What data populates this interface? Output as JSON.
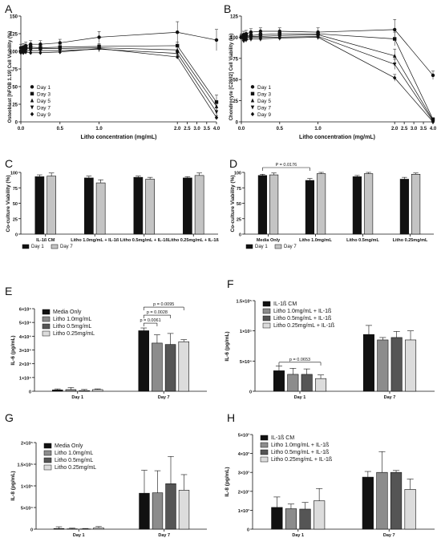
{
  "figure": {
    "colors": {
      "black": "#111111",
      "dark": "#555555",
      "mid": "#8c8c8c",
      "light": "#c4c4c4",
      "lighter": "#dcdcdc"
    }
  },
  "chart_data": [
    {
      "panel": "A",
      "type": "line",
      "xlabel": "Litho concentration (mg/mL)",
      "ylabel": "Osteoblast [hFOB 1.19] Cell Viability (%)",
      "ylim": [
        0,
        150
      ],
      "yticks": [
        0,
        25,
        50,
        75,
        100,
        125,
        150
      ],
      "xticks": [
        "0.0",
        "0.5",
        "1.0",
        "2.0",
        "2.5",
        "3.0",
        "3.5",
        "4.0"
      ],
      "legend": "left",
      "x": [
        0,
        0.03125,
        0.0625,
        0.125,
        0.25,
        0.5,
        1.0,
        2.0,
        4.0
      ],
      "series": [
        {
          "name": "Day 1",
          "marker": "circle",
          "values": [
            105,
            106,
            108,
            110,
            110,
            112,
            120,
            127,
            116
          ],
          "err": [
            5,
            5,
            5,
            5,
            5,
            5,
            8,
            15,
            15
          ]
        },
        {
          "name": "Day 3",
          "marker": "square",
          "values": [
            100,
            102,
            105,
            106,
            105,
            106,
            107,
            108,
            28
          ],
          "err": [
            4,
            4,
            4,
            4,
            4,
            4,
            4,
            5,
            10
          ]
        },
        {
          "name": "Day 5",
          "marker": "triangle-up",
          "values": [
            100,
            102,
            104,
            104,
            104,
            104,
            105,
            102,
            22
          ],
          "err": [
            4,
            4,
            4,
            4,
            4,
            4,
            4,
            4,
            8
          ]
        },
        {
          "name": "Day 7",
          "marker": "triangle-down",
          "values": [
            100,
            100,
            101,
            101,
            101,
            101,
            103,
            97,
            14
          ],
          "err": [
            4,
            4,
            4,
            4,
            4,
            4,
            4,
            4,
            6
          ]
        },
        {
          "name": "Day 9",
          "marker": "diamond",
          "values": [
            98,
            98,
            99,
            98,
            98,
            99,
            104,
            92,
            6
          ],
          "err": [
            3,
            3,
            3,
            3,
            3,
            3,
            3,
            3,
            3
          ]
        }
      ]
    },
    {
      "panel": "B",
      "type": "line",
      "xlabel": "Litho concentration (mg/mL)",
      "ylabel": "Chondrocyte [C28/I2] Cell Viability (%)",
      "ylim": [
        0,
        125
      ],
      "yticks": [
        0,
        25,
        50,
        75,
        100,
        125
      ],
      "xticks": [
        "0.0",
        "0.5",
        "1.0",
        "2.0",
        "2.5",
        "3.0",
        "3.5",
        "4.0"
      ],
      "legend": "left",
      "x": [
        0,
        0.03125,
        0.0625,
        0.125,
        0.25,
        0.5,
        1.0,
        2.0,
        4.0
      ],
      "series": [
        {
          "name": "Day 1",
          "marker": "circle",
          "values": [
            100,
            103,
            104,
            106,
            107,
            107,
            106,
            109,
            55
          ],
          "err": [
            4,
            4,
            4,
            4,
            4,
            4,
            5,
            12,
            5
          ]
        },
        {
          "name": "Day 3",
          "marker": "square",
          "values": [
            100,
            100,
            102,
            102,
            103,
            104,
            104,
            98,
            3
          ],
          "err": [
            3,
            3,
            3,
            3,
            3,
            3,
            3,
            8,
            2
          ]
        },
        {
          "name": "Day 5",
          "marker": "triangle-up",
          "values": [
            100,
            99,
            100,
            101,
            101,
            102,
            103,
            78,
            2
          ],
          "err": [
            3,
            3,
            3,
            3,
            3,
            3,
            3,
            8,
            2
          ]
        },
        {
          "name": "Day 7",
          "marker": "triangle-down",
          "values": [
            100,
            98,
            99,
            100,
            100,
            100,
            101,
            68,
            1
          ],
          "err": [
            3,
            3,
            3,
            3,
            3,
            3,
            3,
            6,
            1
          ]
        },
        {
          "name": "Day 9",
          "marker": "diamond",
          "values": [
            100,
            96,
            97,
            98,
            98,
            99,
            100,
            52,
            0
          ],
          "err": [
            3,
            3,
            3,
            3,
            3,
            3,
            3,
            4,
            1
          ]
        }
      ]
    },
    {
      "panel": "C",
      "type": "bar",
      "ylabel": "Co-culture Viability (%)",
      "ylim": [
        0,
        100
      ],
      "yticks": [
        0,
        25,
        50,
        75,
        100
      ],
      "categories": [
        "IL-1ß CM",
        "Litho 1.0mg/mL + IL-1ß",
        "Litho 0.5mg/mL + IL-1ß",
        "Litho 0.25mg/mL + IL-1ß"
      ],
      "legend": "bottom-left",
      "series": [
        {
          "name": "Day 1",
          "color": "black",
          "values": [
            93,
            91,
            92,
            91
          ],
          "err": [
            3,
            3,
            2,
            2
          ]
        },
        {
          "name": "Day 7",
          "color": "light",
          "values": [
            94,
            83,
            89,
            95
          ],
          "err": [
            5,
            5,
            3,
            4
          ]
        }
      ]
    },
    {
      "panel": "D",
      "type": "bar",
      "ylabel": "Co-culture Viability (%)",
      "ylim": [
        0,
        100
      ],
      "yticks": [
        0,
        25,
        50,
        75,
        100
      ],
      "categories": [
        "Media Only",
        "Litho 1.0mg/mL",
        "Litho 0.5mg/mL",
        "Litho 0.25mg/mL"
      ],
      "legend": "bottom-left",
      "series": [
        {
          "name": "Day 1",
          "color": "black",
          "values": [
            95,
            87,
            93,
            89
          ],
          "err": [
            2,
            3,
            2,
            3
          ]
        },
        {
          "name": "Day 7",
          "color": "light",
          "values": [
            96,
            98,
            98,
            97
          ],
          "err": [
            3,
            2,
            2,
            2
          ]
        }
      ],
      "annotations": [
        {
          "text": "P = 0.0176",
          "from": [
            0,
            0
          ],
          "to": [
            1,
            0
          ]
        }
      ]
    },
    {
      "panel": "E",
      "type": "bar",
      "ylabel": "IL-6 (pg/mL)",
      "ylim": [
        0,
        60000
      ],
      "yticks": [
        0,
        10000,
        20000,
        30000,
        40000,
        50000,
        60000
      ],
      "ytick_labels": [
        "0",
        "1×10⁴",
        "2×10⁴",
        "3×10⁴",
        "4×10⁴",
        "5×10⁴",
        "6×10⁴"
      ],
      "categories": [
        "Day 1",
        "Day 7"
      ],
      "legend": "top-left",
      "series": [
        {
          "name": "Media Only",
          "color": "black",
          "values": [
            1000,
            44000
          ],
          "err": [
            700,
            2000
          ]
        },
        {
          "name": "Litho 1.0mg/mL",
          "color": "mid",
          "values": [
            1200,
            35000
          ],
          "err": [
            1500,
            6000
          ]
        },
        {
          "name": "Litho 0.5mg/mL",
          "color": "dark",
          "values": [
            500,
            34000
          ],
          "err": [
            800,
            8000
          ]
        },
        {
          "name": "Litho 0.25mg/mL",
          "color": "lighter",
          "values": [
            1200,
            36000
          ],
          "err": [
            500,
            1500
          ]
        }
      ],
      "annotations": [
        {
          "text": "p = 0.0061",
          "from": [
            1,
            0
          ],
          "to": [
            1,
            1
          ]
        },
        {
          "text": "p = 0.0028",
          "from": [
            1,
            0
          ],
          "to": [
            1,
            2
          ]
        },
        {
          "text": "p = 0.0095",
          "from": [
            1,
            0
          ],
          "to": [
            1,
            3
          ]
        }
      ]
    },
    {
      "panel": "F",
      "type": "bar",
      "ylabel": "IL-6 (pg/mL)",
      "ylim": [
        0,
        150000
      ],
      "yticks": [
        0,
        50000,
        100000,
        150000
      ],
      "ytick_labels": [
        "0",
        "5×10⁴",
        "1×10⁵",
        "1.5×10⁵"
      ],
      "categories": [
        "Day 1",
        "Day 7"
      ],
      "legend": "top-left",
      "series": [
        {
          "name": "IL-1ß CM",
          "color": "black",
          "values": [
            34000,
            94000
          ],
          "err": [
            8000,
            15000
          ]
        },
        {
          "name": "Litho 1.0mg/mL + IL-1ß",
          "color": "mid",
          "values": [
            28000,
            85000
          ],
          "err": [
            10000,
            4000
          ]
        },
        {
          "name": "Litho 0.5mg/mL + IL-1ß",
          "color": "dark",
          "values": [
            28000,
            89000
          ],
          "err": [
            9000,
            10000
          ]
        },
        {
          "name": "Litho 0.25mg/mL + IL-1ß",
          "color": "lighter",
          "values": [
            21000,
            85000
          ],
          "err": [
            6000,
            15000
          ]
        }
      ],
      "annotations": [
        {
          "text": "p = 0.0653",
          "from": [
            0,
            0
          ],
          "to": [
            0,
            3
          ]
        }
      ]
    },
    {
      "panel": "G",
      "type": "bar",
      "ylabel": "IL-8 (pg/mL)",
      "ylim": [
        0,
        200000
      ],
      "yticks": [
        0,
        50000,
        100000,
        150000,
        200000
      ],
      "ytick_labels": [
        "0",
        "5×10⁴",
        "1×10⁵",
        "1.5×10⁵",
        "2×10⁵"
      ],
      "categories": [
        "Day 1",
        "Day 7"
      ],
      "legend": "top-left",
      "series": [
        {
          "name": "Media Only",
          "color": "black",
          "values": [
            1500,
            83000
          ],
          "err": [
            4000,
            53000
          ]
        },
        {
          "name": "Litho 1.0mg/mL",
          "color": "mid",
          "values": [
            800,
            84000
          ],
          "err": [
            1500,
            51000
          ]
        },
        {
          "name": "Litho 0.5mg/mL",
          "color": "dark",
          "values": [
            600,
            105000
          ],
          "err": [
            1000,
            63000
          ]
        },
        {
          "name": "Litho 0.25mg/mL",
          "color": "lighter",
          "values": [
            3000,
            90000
          ],
          "err": [
            3000,
            36000
          ]
        }
      ]
    },
    {
      "panel": "H",
      "type": "bar",
      "ylabel": "IL-8 (pg/mL)",
      "ylim": [
        0,
        5000
      ],
      "yticks": [
        0,
        1000,
        2000,
        3000,
        4000,
        5000
      ],
      "ytick_labels": [
        "0",
        "1×10³",
        "2×10³",
        "3×10³",
        "4×10³",
        "5×10³"
      ],
      "categories": [
        "Day 1",
        "Day 7"
      ],
      "legend": "top-left",
      "series": [
        {
          "name": "IL-1ß CM",
          "color": "black",
          "values": [
            1150,
            2750
          ],
          "err": [
            550,
            300
          ]
        },
        {
          "name": "Litho 1.0mg/mL + IL-1ß",
          "color": "mid",
          "values": [
            1080,
            3000
          ],
          "err": [
            250,
            1100
          ]
        },
        {
          "name": "Litho 0.5mg/mL + IL-1ß",
          "color": "dark",
          "values": [
            1060,
            3000
          ],
          "err": [
            350,
            100
          ]
        },
        {
          "name": "Litho 0.25mg/mL + IL-1ß",
          "color": "lighter",
          "values": [
            1500,
            2100
          ],
          "err": [
            650,
            550
          ]
        }
      ]
    }
  ]
}
